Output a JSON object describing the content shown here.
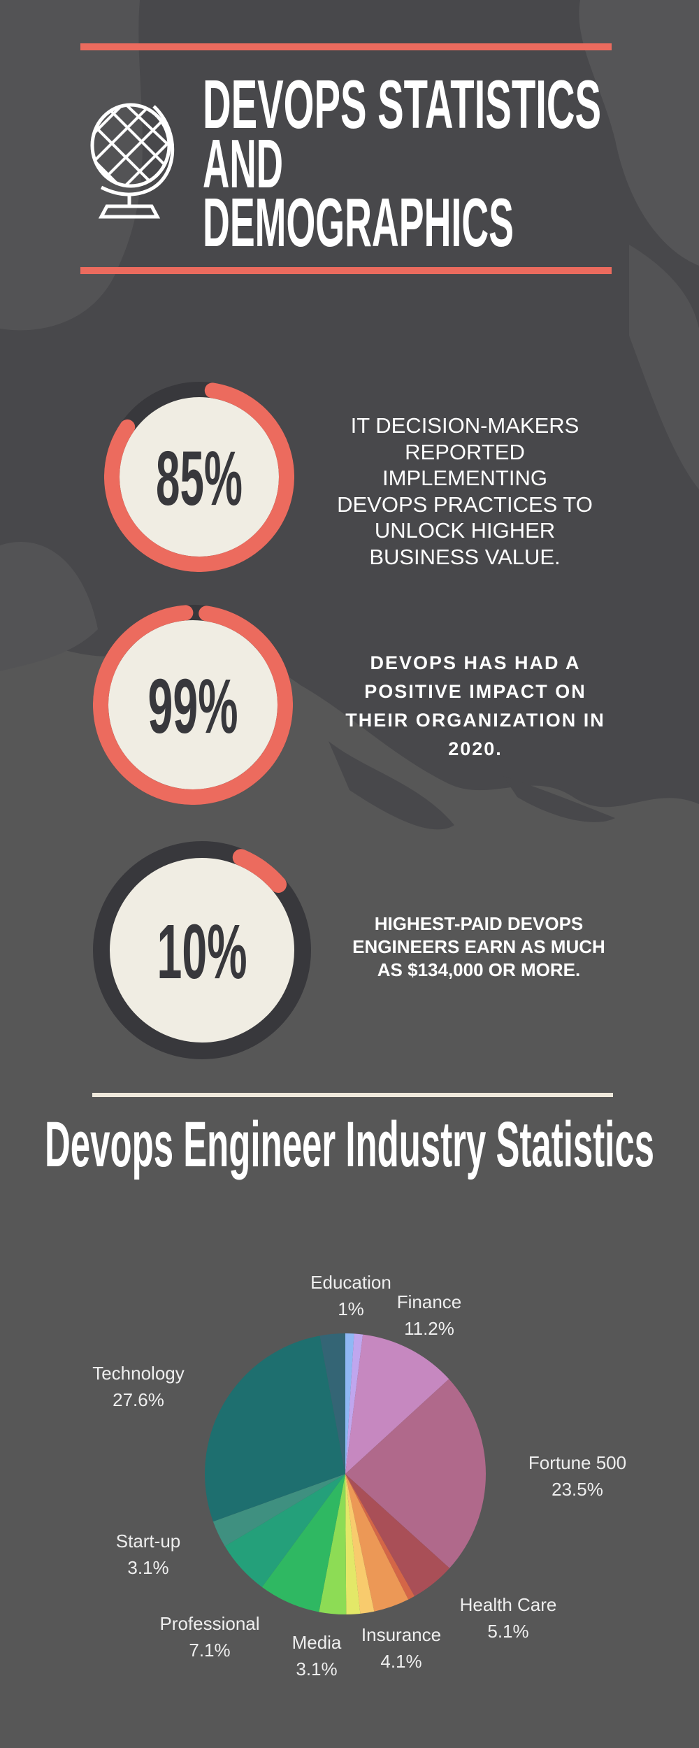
{
  "header": {
    "title_lines": [
      "DEVOPS STATISTICS",
      "AND",
      "DEMOGRAPHICS"
    ],
    "icon": "globe-icon"
  },
  "colors": {
    "accent": "#ec6b5e",
    "ring_track": "#38383c",
    "circle_fill": "#f0ede3",
    "divider": "#efe9dc"
  },
  "stats": [
    {
      "value": 85,
      "label": "85%",
      "lines": [
        "IT DECISION-MAKERS",
        "REPORTED",
        "IMPLEMENTING",
        "DEVOPS PRACTICES TO",
        "UNLOCK HIGHER",
        "BUSINESS VALUE."
      ]
    },
    {
      "value": 99,
      "label": "99%",
      "lines": [
        "DEVOPS HAS HAD A",
        "POSITIVE IMPACT ON",
        "THEIR ORGANIZATION IN",
        "2020."
      ]
    },
    {
      "value": 10,
      "label": "10%",
      "lines": [
        "HIGHEST-PAID DEVOPS",
        "ENGINEERS EARN AS MUCH",
        "AS $134,000 OR MORE."
      ]
    }
  ],
  "section": {
    "heading": "Devops Engineer Industry Statistics"
  },
  "chart_data": {
    "type": "pie",
    "title": "Devops Engineer Industry Statistics",
    "slices": [
      {
        "name": "Education",
        "value": 1,
        "label": "1%",
        "color": "#8fb8f5"
      },
      {
        "name": "",
        "value": 1,
        "label": "",
        "color": "#c0a6ee"
      },
      {
        "name": "Finance",
        "value": 11.2,
        "label": "11.2%",
        "color": "#c688c0"
      },
      {
        "name": "Fortune 500",
        "value": 23.5,
        "label": "23.5%",
        "color": "#b0698b"
      },
      {
        "name": "Health Care",
        "value": 5.1,
        "label": "5.1%",
        "color": "#a94f57"
      },
      {
        "name": "",
        "value": 0.8,
        "label": "",
        "color": "#d46647"
      },
      {
        "name": "Insurance",
        "value": 4.1,
        "label": "4.1%",
        "color": "#ec9856"
      },
      {
        "name": "",
        "value": 1.6,
        "label": "",
        "color": "#f8cb6d"
      },
      {
        "name": "",
        "value": 1.6,
        "label": "",
        "color": "#e3e868"
      },
      {
        "name": "Media",
        "value": 3.1,
        "label": "3.1%",
        "color": "#8ddc55"
      },
      {
        "name": "Professional",
        "value": 7.1,
        "label": "7.1%",
        "color": "#2fb862"
      },
      {
        "name": "",
        "value": 6.3,
        "label": "",
        "color": "#24a07a"
      },
      {
        "name": "Start-up",
        "value": 3.1,
        "label": "3.1%",
        "color": "#3f9080"
      },
      {
        "name": "Technology",
        "value": 27.6,
        "label": "27.6%",
        "color": "#1e6f6f"
      },
      {
        "name": "",
        "value": 2.9,
        "label": "",
        "color": "#346575"
      }
    ]
  }
}
